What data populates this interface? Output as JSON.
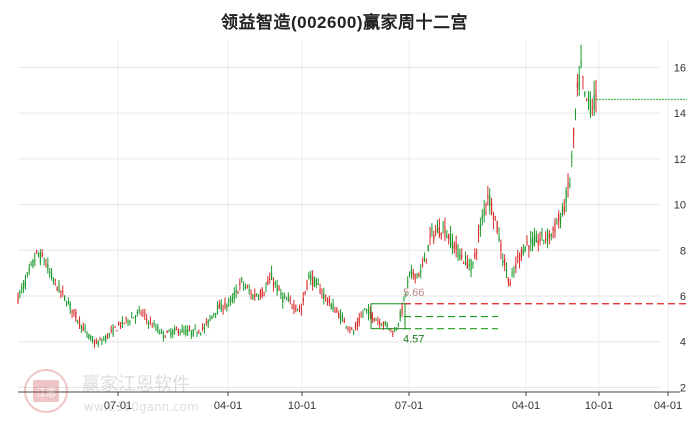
{
  "chart_data": {
    "type": "candlestick",
    "title": "领益智造(002600)赢家周十二宫",
    "x_ticks": [
      "07-01",
      "04-01",
      "10-01",
      "07-01",
      "04-01",
      "10-01",
      "04-01"
    ],
    "y_ticks": [
      2,
      4,
      6,
      8,
      10,
      12,
      14,
      16
    ],
    "ylim": [
      1.8,
      17.2
    ],
    "grid": true,
    "colors": {
      "up": "#d92b2b",
      "down": "#1e9b2e",
      "level_red": "#e02020",
      "level_green": "#1c9c1c",
      "last_price": "#2db02d"
    },
    "anchor_path": [
      [
        0,
        5.9
      ],
      [
        6,
        7.0
      ],
      [
        10,
        7.8
      ],
      [
        14,
        7.6
      ],
      [
        18,
        6.8
      ],
      [
        26,
        5.8
      ],
      [
        32,
        5.0
      ],
      [
        38,
        4.2
      ],
      [
        42,
        3.9
      ],
      [
        46,
        4.1
      ],
      [
        54,
        4.7
      ],
      [
        60,
        5.0
      ],
      [
        66,
        5.3
      ],
      [
        70,
        4.9
      ],
      [
        78,
        4.3
      ],
      [
        86,
        4.5
      ],
      [
        94,
        4.4
      ],
      [
        100,
        4.6
      ],
      [
        106,
        5.4
      ],
      [
        114,
        5.7
      ],
      [
        120,
        6.6
      ],
      [
        126,
        6.0
      ],
      [
        132,
        6.2
      ],
      [
        136,
        6.8
      ],
      [
        142,
        5.9
      ],
      [
        148,
        5.6
      ],
      [
        152,
        5.4
      ],
      [
        156,
        6.9
      ],
      [
        160,
        6.5
      ],
      [
        168,
        5.6
      ],
      [
        174,
        5.0
      ],
      [
        180,
        4.4
      ],
      [
        186,
        5.4
      ],
      [
        192,
        5.0
      ],
      [
        198,
        4.7
      ],
      [
        202,
        4.4
      ],
      [
        206,
        5.4
      ],
      [
        210,
        6.9
      ],
      [
        216,
        7.0
      ],
      [
        222,
        8.7
      ],
      [
        228,
        9.0
      ],
      [
        234,
        8.2
      ],
      [
        240,
        7.5
      ],
      [
        244,
        7.3
      ],
      [
        248,
        9.0
      ],
      [
        252,
        10.5
      ],
      [
        256,
        9.4
      ],
      [
        260,
        7.7
      ],
      [
        264,
        6.5
      ],
      [
        268,
        7.6
      ],
      [
        272,
        8.2
      ],
      [
        278,
        8.4
      ],
      [
        286,
        8.7
      ],
      [
        292,
        9.6
      ],
      [
        296,
        11.0
      ],
      [
        300,
        14.8
      ],
      [
        302,
        15.9
      ],
      [
        304,
        14.6
      ],
      [
        308,
        14.4
      ],
      [
        310,
        14.6
      ]
    ],
    "levels": [
      {
        "label": "5.66",
        "price": 5.66,
        "style": "dashed",
        "color_key": "level_red"
      },
      {
        "label": "",
        "price": 5.1,
        "style": "dashed",
        "color_key": "level_green"
      },
      {
        "label": "4.57",
        "price": 4.57,
        "style": "dashed",
        "color_key": "level_green"
      }
    ],
    "last_price": 14.6
  },
  "watermark": {
    "logo_text": "江恩",
    "brand": "赢家江恩软件",
    "url": "www.360gann.com"
  }
}
